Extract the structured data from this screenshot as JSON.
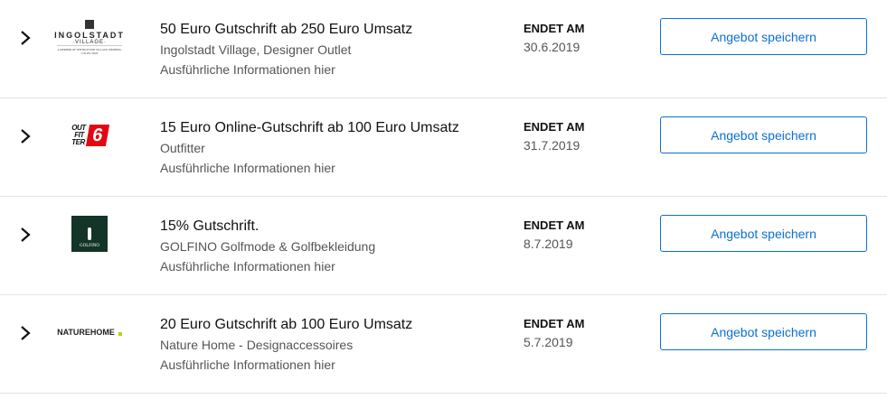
{
  "colors": {
    "accent": "#0a6fd6",
    "outfitter_red": "#e30613",
    "golfino_green": "#123527",
    "naturehome_dot": "#b5d30f"
  },
  "end_label": "ENDET AM",
  "save_label": "Angebot speichern",
  "details_label": "Ausführliche Informationen hier",
  "offers": [
    {
      "title": "50 Euro Gutschrift ab 250 Euro Umsatz",
      "merchant": "Ingolstadt Village, Designer Outlet",
      "end_date": "30.6.2019",
      "logo": {
        "name": "INGOLSTADT",
        "sub": "·VILLAGE·",
        "tagline": "A MEMBER OF THE BICESTER VILLAGE SHOPPING COLLECTION"
      }
    },
    {
      "title": "15 Euro Online-Gutschrift ab 100 Euro Umsatz",
      "merchant": "Outfitter",
      "end_date": "31.7.2019",
      "logo": {
        "l1": "OUT",
        "l2": "FIT",
        "l3": "TER",
        "mark": "6"
      }
    },
    {
      "title": "15% Gutschrift.",
      "merchant": "GOLFINO Golfmode & Golfbekleidung",
      "end_date": "8.7.2019",
      "logo": {
        "name": "GOLFINO"
      }
    },
    {
      "title": "20 Euro Gutschrift ab 100 Euro Umsatz",
      "merchant": "Nature Home - Designaccessoires",
      "end_date": "5.7.2019",
      "logo": {
        "name": "NATUREHOME"
      }
    }
  ]
}
